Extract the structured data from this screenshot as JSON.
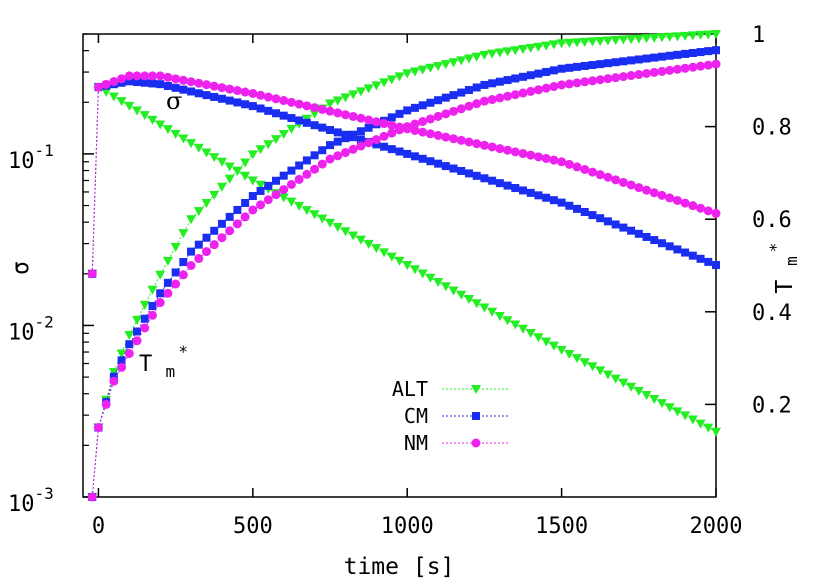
{
  "chart_data": {
    "type": "scatter",
    "xlabel": "time [s]",
    "ylabel_left": "σ",
    "ylabel_right_base": "T",
    "ylabel_right_sub": "m",
    "ylabel_right_sup": "*",
    "xlim": [
      -50,
      2000
    ],
    "ylim_left": [
      0.001,
      0.5
    ],
    "ylim_right": [
      0,
      1
    ],
    "y_left_scale": "log",
    "x_ticks": [
      "0",
      "500",
      "1000",
      "1500",
      "2000"
    ],
    "x_tick_values": [
      0,
      500,
      1000,
      1500,
      2000
    ],
    "y_left_ticks": [
      {
        "base": "10",
        "exp": "-3",
        "value": 0.001
      },
      {
        "base": "10",
        "exp": "-2",
        "value": 0.01
      },
      {
        "base": "10",
        "exp": "-1",
        "value": 0.1
      }
    ],
    "y_right_ticks": [
      "0.2",
      "0.4",
      "0.6",
      "0.8",
      "1"
    ],
    "y_right_tick_values": [
      0.2,
      0.4,
      0.6,
      0.8,
      1.0
    ],
    "annotations": {
      "sigma": "σ",
      "tm_base": "T",
      "tm_sub": "m",
      "tm_sup": "*"
    },
    "legend_position": "lower-center",
    "series": [
      {
        "name": "ALT",
        "color": "#22ee22",
        "marker": "triangle-down",
        "sigma_points": [
          [
            -20,
            0.02
          ],
          [
            0,
            0.245
          ],
          [
            500,
            0.07
          ],
          [
            1000,
            0.0225
          ],
          [
            1500,
            0.0072
          ],
          [
            2000,
            0.0024
          ]
        ],
        "tm_points": [
          [
            -20,
            0.0
          ],
          [
            0,
            0.15
          ],
          [
            50,
            0.27
          ],
          [
            100,
            0.35
          ],
          [
            200,
            0.48
          ],
          [
            300,
            0.6
          ],
          [
            500,
            0.74
          ],
          [
            750,
            0.85
          ],
          [
            1000,
            0.915
          ],
          [
            1250,
            0.955
          ],
          [
            1500,
            0.98
          ],
          [
            2000,
            1.0
          ]
        ]
      },
      {
        "name": "CM",
        "color": "#1a2ef2",
        "marker": "square",
        "sigma_points": [
          [
            -20,
            0.02
          ],
          [
            0,
            0.245
          ],
          [
            100,
            0.265
          ],
          [
            200,
            0.255
          ],
          [
            500,
            0.19
          ],
          [
            1000,
            0.1
          ],
          [
            1500,
            0.052
          ],
          [
            2000,
            0.0225
          ]
        ],
        "tm_points": [
          [
            -20,
            0.0
          ],
          [
            0,
            0.15
          ],
          [
            50,
            0.26
          ],
          [
            100,
            0.33
          ],
          [
            200,
            0.44
          ],
          [
            300,
            0.53
          ],
          [
            500,
            0.65
          ],
          [
            750,
            0.76
          ],
          [
            1000,
            0.835
          ],
          [
            1250,
            0.89
          ],
          [
            1500,
            0.925
          ],
          [
            2000,
            0.965
          ]
        ]
      },
      {
        "name": "NM",
        "color": "#ee22ee",
        "marker": "circle",
        "sigma_points": [
          [
            -20,
            0.02
          ],
          [
            0,
            0.245
          ],
          [
            100,
            0.285
          ],
          [
            200,
            0.285
          ],
          [
            500,
            0.225
          ],
          [
            1000,
            0.14
          ],
          [
            1500,
            0.09
          ],
          [
            2000,
            0.045
          ]
        ],
        "tm_points": [
          [
            -20,
            0.0
          ],
          [
            0,
            0.15
          ],
          [
            50,
            0.25
          ],
          [
            100,
            0.31
          ],
          [
            200,
            0.42
          ],
          [
            300,
            0.5
          ],
          [
            500,
            0.62
          ],
          [
            750,
            0.73
          ],
          [
            1000,
            0.8
          ],
          [
            1250,
            0.855
          ],
          [
            1500,
            0.89
          ],
          [
            2000,
            0.935
          ]
        ]
      }
    ]
  }
}
